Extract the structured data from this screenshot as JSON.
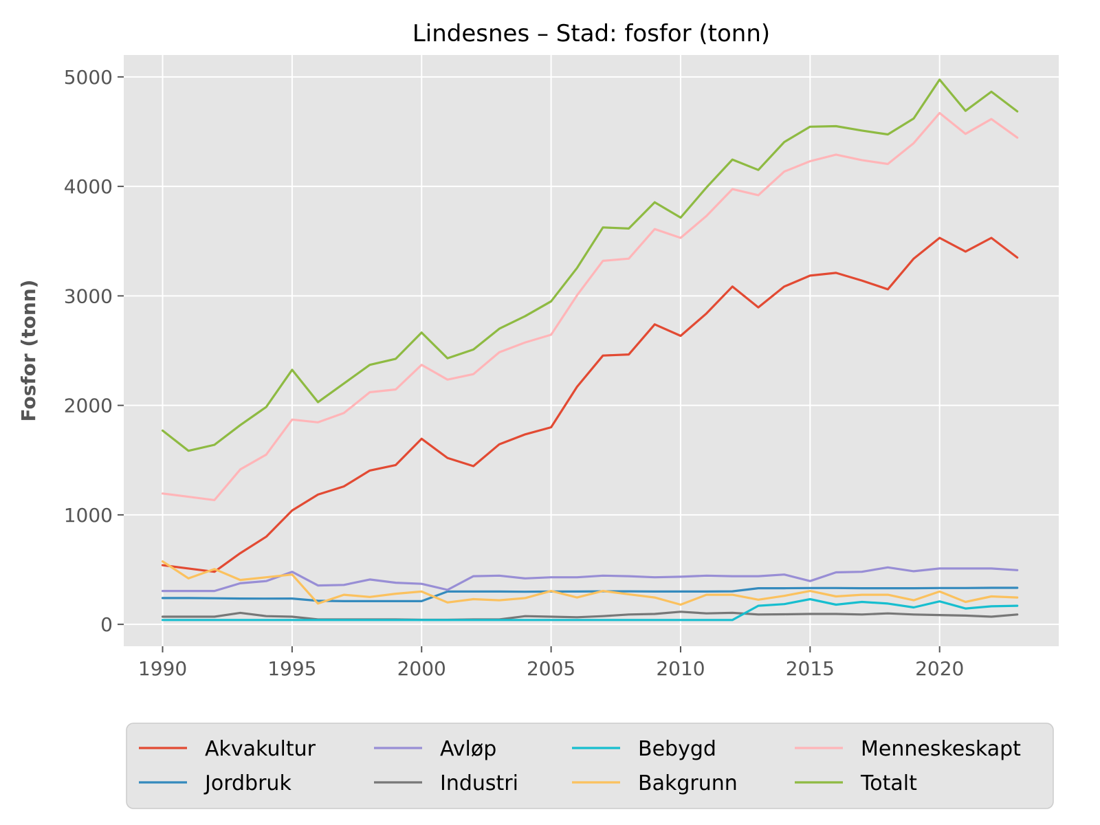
{
  "chart_data": {
    "type": "line",
    "title": "Lindesnes – Stad: fosfor (tonn)",
    "xlabel": "",
    "ylabel": "Fosfor (tonn)",
    "xlim": [
      1988.5,
      2024.6
    ],
    "ylim": [
      -200,
      5200
    ],
    "xticks": [
      1990,
      1995,
      2000,
      2005,
      2010,
      2015,
      2020
    ],
    "yticks": [
      0,
      1000,
      2000,
      3000,
      4000,
      5000
    ],
    "grid": true,
    "legend_position": "bottom",
    "x": [
      1990,
      1991,
      1992,
      1993,
      1994,
      1995,
      1996,
      1997,
      1998,
      1999,
      2000,
      2001,
      2002,
      2003,
      2004,
      2005,
      2006,
      2007,
      2008,
      2009,
      2010,
      2011,
      2012,
      2013,
      2014,
      2015,
      2016,
      2017,
      2018,
      2019,
      2020,
      2021,
      2022,
      2023
    ],
    "series": [
      {
        "name": "Akvakultur",
        "color": "#E24A33",
        "values": [
          540,
          510,
          480,
          650,
          800,
          1040,
          1185,
          1260,
          1405,
          1455,
          1695,
          1520,
          1445,
          1645,
          1735,
          1800,
          2170,
          2455,
          2465,
          2740,
          2635,
          2840,
          3085,
          2895,
          3085,
          3185,
          3210,
          3140,
          3060,
          3340,
          3530,
          3405,
          3530,
          3350
        ]
      },
      {
        "name": "Jordbruk",
        "color": "#348ABD",
        "values": [
          240,
          240,
          238,
          236,
          235,
          236,
          215,
          212,
          212,
          212,
          212,
          300,
          300,
          300,
          298,
          300,
          300,
          302,
          302,
          300,
          300,
          300,
          302,
          330,
          330,
          332,
          332,
          330,
          330,
          330,
          332,
          332,
          334,
          334
        ]
      },
      {
        "name": "Avløp",
        "color": "#988ED5",
        "values": [
          305,
          305,
          305,
          375,
          395,
          480,
          355,
          360,
          410,
          380,
          370,
          315,
          440,
          445,
          420,
          430,
          430,
          445,
          440,
          430,
          435,
          445,
          440,
          440,
          455,
          395,
          475,
          480,
          520,
          485,
          510,
          510,
          510,
          495
        ]
      },
      {
        "name": "Industri",
        "color": "#777777",
        "values": [
          70,
          70,
          70,
          105,
          75,
          70,
          45,
          45,
          45,
          45,
          42,
          42,
          45,
          45,
          75,
          70,
          65,
          75,
          90,
          95,
          115,
          100,
          105,
          90,
          92,
          95,
          95,
          90,
          100,
          90,
          85,
          80,
          70,
          90
        ]
      },
      {
        "name": "Bebygd",
        "color": "#17BECF",
        "values": [
          40,
          40,
          40,
          40,
          40,
          40,
          40,
          40,
          40,
          40,
          40,
          40,
          40,
          40,
          40,
          40,
          40,
          40,
          40,
          40,
          40,
          40,
          40,
          170,
          185,
          230,
          180,
          205,
          190,
          155,
          210,
          145,
          165,
          170
        ]
      },
      {
        "name": "Bakgrunn",
        "color": "#FBC15E",
        "values": [
          575,
          420,
          505,
          405,
          430,
          455,
          190,
          270,
          250,
          280,
          300,
          200,
          230,
          220,
          240,
          305,
          245,
          305,
          275,
          245,
          180,
          270,
          270,
          225,
          260,
          305,
          255,
          270,
          270,
          220,
          300,
          205,
          255,
          245
        ]
      },
      {
        "name": "Menneskeskapt",
        "color": "#FFB5B8",
        "values": [
          1195,
          1165,
          1135,
          1415,
          1550,
          1870,
          1845,
          1930,
          2120,
          2145,
          2370,
          2235,
          2285,
          2485,
          2575,
          2645,
          3005,
          3320,
          3340,
          3610,
          3530,
          3730,
          3975,
          3920,
          4135,
          4230,
          4290,
          4240,
          4205,
          4395,
          4670,
          4480,
          4615,
          4445
        ]
      },
      {
        "name": "Totalt",
        "color": "#8EBA42",
        "values": [
          1770,
          1585,
          1640,
          1820,
          1985,
          2325,
          2030,
          2200,
          2370,
          2425,
          2665,
          2430,
          2510,
          2700,
          2815,
          2950,
          3255,
          3625,
          3615,
          3855,
          3715,
          3990,
          4245,
          4150,
          4405,
          4545,
          4550,
          4510,
          4475,
          4620,
          4975,
          4690,
          4865,
          4685
        ]
      }
    ]
  }
}
